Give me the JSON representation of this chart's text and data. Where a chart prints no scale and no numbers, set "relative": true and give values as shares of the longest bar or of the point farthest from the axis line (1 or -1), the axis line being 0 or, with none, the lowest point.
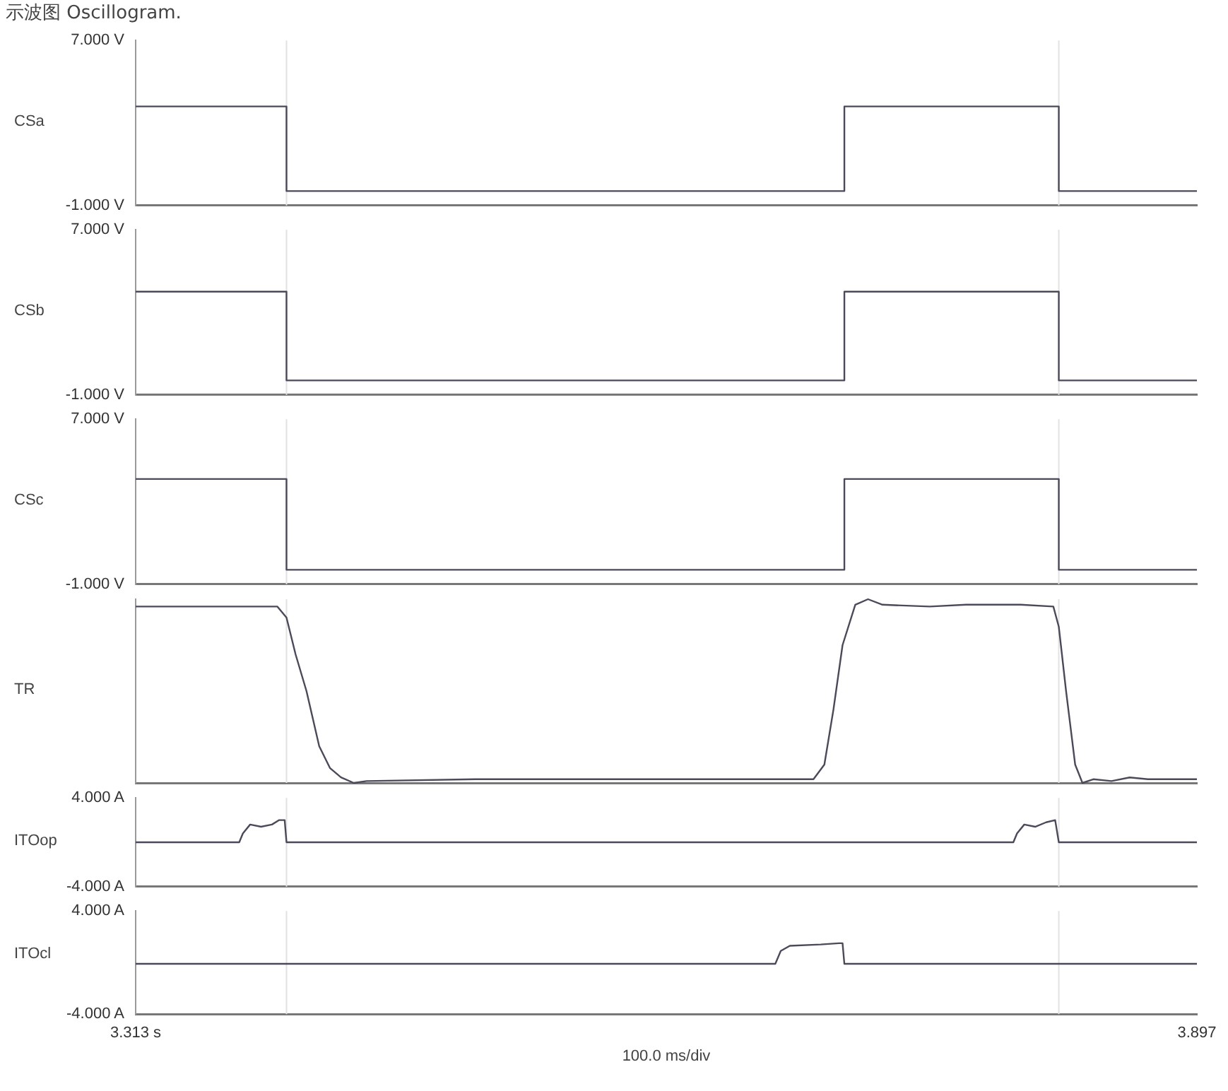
{
  "chart_data": [
    {
      "type": "line",
      "title": "示波图 Oscillogram.",
      "ylabel": "CSa",
      "xlim": [
        3.313,
        3.897
      ],
      "ylim": [
        -1,
        7
      ],
      "yticks": [
        {
          "value": 7,
          "label": "7.000 V"
        },
        {
          "value": -1,
          "label": "-1.000 V"
        }
      ],
      "tick_labels": "y",
      "legend": false,
      "grid": false,
      "x": [
        3.313,
        3.396,
        3.396,
        3.5,
        3.6,
        3.703,
        3.703,
        3.821,
        3.821,
        3.86,
        3.897
      ],
      "series": [
        {
          "color": "#4a4a5a",
          "values": [
            3.8,
            3.8,
            -0.3,
            -0.3,
            -0.3,
            -0.3,
            3.8,
            3.8,
            -0.3,
            -0.3,
            -0.3
          ]
        }
      ],
      "ref_lines": [
        {
          "axis": "x",
          "value": 3.396,
          "color": "#e2e2e2"
        },
        {
          "axis": "x",
          "value": 3.821,
          "color": "#e2e2e2"
        }
      ]
    },
    {
      "type": "line",
      "ylabel": "CSb",
      "xlim": [
        3.313,
        3.897
      ],
      "ylim": [
        -1,
        7
      ],
      "yticks": [
        {
          "value": 7,
          "label": "7.000 V"
        },
        {
          "value": -1,
          "label": "-1.000 V"
        }
      ],
      "tick_labels": "y",
      "legend": false,
      "grid": false,
      "x": [
        3.313,
        3.396,
        3.396,
        3.5,
        3.6,
        3.703,
        3.703,
        3.821,
        3.821,
        3.86,
        3.897
      ],
      "series": [
        {
          "color": "#4a4a5a",
          "values": [
            4.0,
            4.0,
            -0.3,
            -0.3,
            -0.3,
            -0.3,
            4.0,
            4.0,
            -0.3,
            -0.3,
            -0.3
          ]
        }
      ],
      "ref_lines": [
        {
          "axis": "x",
          "value": 3.396,
          "color": "#e2e2e2"
        },
        {
          "axis": "x",
          "value": 3.821,
          "color": "#e2e2e2"
        }
      ]
    },
    {
      "type": "line",
      "ylabel": "CSc",
      "xlim": [
        3.313,
        3.897
      ],
      "ylim": [
        -1,
        7
      ],
      "yticks": [
        {
          "value": 7,
          "label": "7.000 V"
        },
        {
          "value": -1,
          "label": "-1.000 V"
        }
      ],
      "tick_labels": "y",
      "legend": false,
      "grid": false,
      "x": [
        3.313,
        3.396,
        3.396,
        3.5,
        3.6,
        3.703,
        3.703,
        3.821,
        3.821,
        3.86,
        3.897
      ],
      "series": [
        {
          "color": "#4a4a5a",
          "values": [
            4.1,
            4.1,
            -0.3,
            -0.3,
            -0.3,
            -0.3,
            4.1,
            4.1,
            -0.3,
            -0.3,
            -0.3
          ]
        }
      ],
      "ref_lines": [
        {
          "axis": "x",
          "value": 3.396,
          "color": "#e2e2e2"
        },
        {
          "axis": "x",
          "value": 3.821,
          "color": "#e2e2e2"
        }
      ]
    },
    {
      "type": "line",
      "ylabel": "TR",
      "xlim": [
        3.313,
        3.897
      ],
      "relative": true,
      "tick_labels": false,
      "legend": false,
      "grid": false,
      "x": [
        3.313,
        3.391,
        3.396,
        3.401,
        3.407,
        3.414,
        3.42,
        3.426,
        3.433,
        3.44,
        3.5,
        3.6,
        3.686,
        3.692,
        3.697,
        3.702,
        3.709,
        3.716,
        3.724,
        3.75,
        3.77,
        3.8,
        3.818,
        3.821,
        3.825,
        3.83,
        3.834,
        3.84,
        3.85,
        3.86,
        3.87,
        3.897
      ],
      "series": [
        {
          "color": "#4a4a5a",
          "values": [
            0.96,
            0.96,
            0.9,
            0.7,
            0.5,
            0.2,
            0.08,
            0.03,
            0,
            0.01,
            0.02,
            0.02,
            0.02,
            0.1,
            0.4,
            0.75,
            0.97,
            1,
            0.97,
            0.96,
            0.97,
            0.97,
            0.96,
            0.85,
            0.5,
            0.1,
            0,
            0.02,
            0.01,
            0.03,
            0.02,
            0.02
          ]
        }
      ],
      "ref_lines": [
        {
          "axis": "x",
          "value": 3.396,
          "color": "#e2e2e2"
        },
        {
          "axis": "x",
          "value": 3.821,
          "color": "#e2e2e2"
        }
      ]
    },
    {
      "type": "line",
      "ylabel": "ITOop",
      "xlim": [
        3.313,
        3.897
      ],
      "ylim": [
        -4,
        4
      ],
      "yticks": [
        {
          "value": 4,
          "label": "4.000 A"
        },
        {
          "value": -4,
          "label": "-4.000 A"
        }
      ],
      "tick_labels": "y",
      "legend": false,
      "grid": false,
      "x": [
        3.313,
        3.37,
        3.372,
        3.376,
        3.382,
        3.388,
        3.392,
        3.395,
        3.396,
        3.6,
        3.796,
        3.798,
        3.802,
        3.808,
        3.814,
        3.819,
        3.821,
        3.897
      ],
      "series": [
        {
          "color": "#4a4a5a",
          "values": [
            0,
            0,
            0.8,
            1.6,
            1.4,
            1.6,
            2.0,
            2.0,
            0,
            0,
            0,
            0.8,
            1.6,
            1.4,
            1.8,
            2.0,
            0,
            0
          ]
        }
      ],
      "ref_lines": [
        {
          "axis": "x",
          "value": 3.396,
          "color": "#e2e2e2"
        },
        {
          "axis": "x",
          "value": 3.821,
          "color": "#e2e2e2"
        }
      ]
    },
    {
      "type": "line",
      "ylabel": "ITOcl",
      "xlim": [
        3.313,
        3.897
      ],
      "ylim": [
        -4,
        4
      ],
      "yticks": [
        {
          "value": 4,
          "label": "4.000 A"
        },
        {
          "value": -4,
          "label": "-4.000 A"
        }
      ],
      "xticks": [
        {
          "value": 3.313,
          "label": "3.313 s"
        },
        {
          "value": 3.897,
          "label": "3.897"
        }
      ],
      "legend": false,
      "grid": false,
      "x": [
        3.313,
        3.5,
        3.665,
        3.668,
        3.673,
        3.69,
        3.7,
        3.702,
        3.703,
        3.8,
        3.897
      ],
      "series": [
        {
          "color": "#4a4a5a",
          "values": [
            -0.1,
            -0.1,
            -0.1,
            0.9,
            1.3,
            1.4,
            1.5,
            1.5,
            -0.1,
            -0.1,
            -0.1
          ]
        }
      ],
      "xlabel": "100.0 ms/div",
      "ref_lines": [
        {
          "axis": "x",
          "value": 3.396,
          "color": "#e2e2e2"
        },
        {
          "axis": "x",
          "value": 3.821,
          "color": "#e2e2e2"
        }
      ]
    }
  ]
}
